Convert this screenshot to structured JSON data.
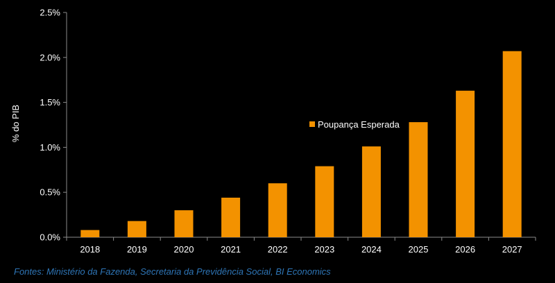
{
  "chart_data": {
    "type": "bar",
    "title": "",
    "xlabel": "",
    "ylabel": "% do PIB",
    "categories": [
      "2018",
      "2019",
      "2020",
      "2021",
      "2022",
      "2023",
      "2024",
      "2025",
      "2026",
      "2027"
    ],
    "series": [
      {
        "name": "Poupança Esperada",
        "values": [
          0.08,
          0.18,
          0.3,
          0.44,
          0.6,
          0.79,
          1.01,
          1.28,
          1.63,
          2.07
        ]
      }
    ],
    "ylim": [
      0,
      2.5
    ],
    "yticks": [
      0,
      0.5,
      1.0,
      1.5,
      2.0,
      2.5
    ],
    "ytick_labels": [
      "0.0%",
      "0.5%",
      "1.0%",
      "1.5%",
      "2.0%",
      "2.5%"
    ],
    "grid": false,
    "legend_position": "center",
    "colors": {
      "bar": "#f39200",
      "axis": "#8c8c8c",
      "text": "#ffffff",
      "background": "#000000"
    }
  },
  "source": {
    "text": "Fontes: Ministério da Fazenda, Secretaria da Previdência Social, BI Economics",
    "color": "#2e75b6"
  }
}
